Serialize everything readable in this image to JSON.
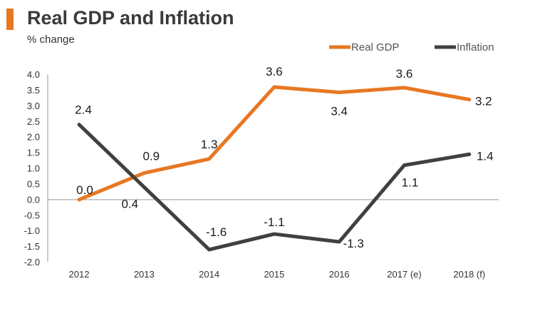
{
  "header": {
    "title": "Real GDP and Inflation",
    "subtitle": "% change"
  },
  "colors": {
    "accent": "#e87722",
    "gdp": "#e87722",
    "inflation": "#404040",
    "axis": "#999999"
  },
  "chart_data": {
    "type": "line",
    "title": "Real GDP and Inflation",
    "ylabel": "% change",
    "categories": [
      "2012",
      "2013",
      "2014",
      "2015",
      "2016",
      "2017 (e)",
      "2018 (f)"
    ],
    "ylim": [
      -2.0,
      4.0
    ],
    "yticks": [
      "4.0",
      "3.5",
      "3.0",
      "2.5",
      "2.0",
      "1.5",
      "1.0",
      "0.5",
      "0.0",
      "-0.5",
      "-1.0",
      "-1.5",
      "-2.0"
    ],
    "grid": false,
    "legend": "top-right",
    "series": [
      {
        "name": "Real GDP",
        "values": [
          0.0,
          0.85,
          1.3,
          3.6,
          3.43,
          3.58,
          3.2
        ],
        "labels": [
          "0.0",
          "0.9",
          "1.3",
          "3.6",
          "3.4",
          "3.6",
          "3.2"
        ]
      },
      {
        "name": "Inflation",
        "values": [
          2.4,
          0.4,
          -1.6,
          -1.1,
          -1.35,
          1.1,
          1.45
        ],
        "labels": [
          "2.4",
          "0.4",
          "-1.6",
          "-1.1",
          "-1.3",
          "1.1",
          "1.4"
        ]
      }
    ]
  }
}
